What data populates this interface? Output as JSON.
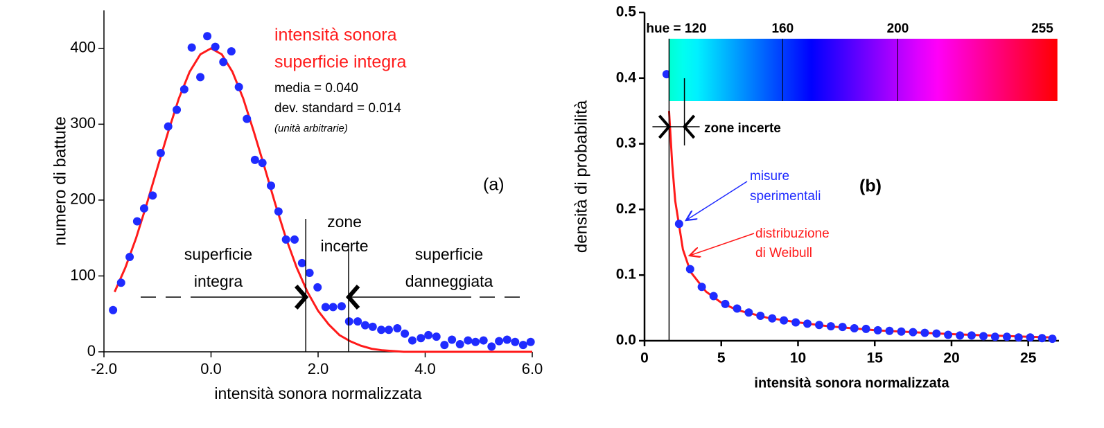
{
  "chart_data": [
    {
      "type": "scatter",
      "panel_label": "(a)",
      "x_label": "intensità sonora normalizzata",
      "y_label": "numero di battute",
      "xlim": [
        -2,
        6
      ],
      "ylim": [
        0,
        450
      ],
      "xticks": [
        {
          "value": -2,
          "label": "-2.0"
        },
        {
          "value": 0,
          "label": "0.0"
        },
        {
          "value": 2,
          "label": "2.0"
        },
        {
          "value": 4,
          "label": "4.0"
        },
        {
          "value": 6,
          "label": "6.0"
        }
      ],
      "yticks": [
        0,
        100,
        200,
        300,
        400
      ],
      "points": {
        "color": "#1f2bff",
        "x": [
          -1.83,
          -1.68,
          -1.52,
          -1.38,
          -1.25,
          -1.09,
          -0.94,
          -0.8,
          -0.64,
          -0.5,
          -0.36,
          -0.2,
          -0.07,
          0.08,
          0.23,
          0.38,
          0.52,
          0.67,
          0.82,
          0.96,
          1.12,
          1.26,
          1.4,
          1.56,
          1.7,
          1.84,
          1.99,
          2.14,
          2.28,
          2.44,
          2.58,
          2.74,
          2.88,
          3.02,
          3.18,
          3.32,
          3.48,
          3.62,
          3.76,
          3.92,
          4.06,
          4.21,
          4.36,
          4.5,
          4.65,
          4.8,
          4.94,
          5.09,
          5.24,
          5.38,
          5.53,
          5.68,
          5.83,
          5.97
        ],
        "y": [
          55,
          91,
          125,
          172,
          189,
          206,
          262,
          297,
          319,
          346,
          401,
          362,
          416,
          402,
          382,
          396,
          349,
          307,
          253,
          249,
          219,
          185,
          148,
          148,
          117,
          104,
          85,
          59,
          59,
          60,
          40,
          40,
          35,
          33,
          29,
          29,
          31,
          24,
          15,
          18,
          22,
          20,
          9,
          16,
          10,
          15,
          13,
          15,
          7,
          14,
          16,
          13,
          9,
          13
        ]
      },
      "fit": {
        "color": "#ff1a1a",
        "x": [
          -1.8,
          -1.6,
          -1.4,
          -1.2,
          -1.0,
          -0.8,
          -0.6,
          -0.4,
          -0.2,
          0,
          0.2,
          0.4,
          0.6,
          0.8,
          1.0,
          1.2,
          1.4,
          1.6,
          1.8,
          2.0,
          2.2,
          2.4,
          2.6,
          2.8,
          3.0,
          3.2,
          3.4,
          3.6,
          3.8,
          4.0,
          5.0,
          6.0
        ],
        "y": [
          79,
          111,
          150,
          195,
          243,
          290,
          334,
          369,
          392,
          400,
          392,
          369,
          334,
          290,
          243,
          195,
          150,
          111,
          79,
          54,
          36,
          22,
          14,
          8,
          4,
          2,
          1,
          0,
          0,
          0,
          0,
          0
        ]
      },
      "thresholds": [
        1.77,
        2.57
      ],
      "legend_red": [
        "intensità sonora",
        "superficie integra"
      ],
      "stats": [
        "media = 0.040",
        "dev. standard = 0.014"
      ],
      "units_note": "(unità arbitrarie)",
      "regions": [
        [
          "superficie",
          "integra"
        ],
        [
          "zone",
          "incerte"
        ],
        [
          "superficie",
          "danneggiata"
        ]
      ]
    },
    {
      "type": "scatter",
      "panel_label": "(b)",
      "x_label": "intensità sonora normalizzata",
      "y_label": "densità di probabilità",
      "xlim": [
        0,
        27
      ],
      "ylim": [
        0,
        0.5
      ],
      "xticks": [
        0,
        5,
        10,
        15,
        20,
        25
      ],
      "yticks": [
        {
          "value": 0,
          "label": "0.0"
        },
        0.1,
        0.2,
        0.3,
        0.4,
        0.5
      ],
      "points": {
        "color": "#1f2bff",
        "x": [
          1.44,
          2.25,
          2.97,
          3.73,
          4.5,
          5.26,
          6.03,
          6.79,
          7.55,
          8.32,
          9.08,
          9.85,
          10.61,
          11.38,
          12.14,
          12.9,
          13.67,
          14.43,
          15.2,
          15.96,
          16.73,
          17.49,
          18.26,
          19.02,
          19.78,
          20.55,
          21.31,
          22.08,
          22.84,
          23.61,
          24.37,
          25.13,
          25.9,
          26.57
        ],
        "y": [
          0.406,
          0.178,
          0.109,
          0.082,
          0.068,
          0.056,
          0.049,
          0.043,
          0.038,
          0.034,
          0.031,
          0.028,
          0.026,
          0.024,
          0.022,
          0.021,
          0.019,
          0.018,
          0.016,
          0.015,
          0.014,
          0.013,
          0.012,
          0.011,
          0.009,
          0.008,
          0.008,
          0.007,
          0.006,
          0.006,
          0.005,
          0.005,
          0.004,
          0.003
        ]
      },
      "fit": {
        "color": "#ff1a1a",
        "x": [
          1.6,
          1.8,
          2.0,
          2.5,
          3,
          4,
          5,
          6,
          8,
          10,
          12,
          15,
          20,
          25,
          26.6
        ],
        "y": [
          0.35,
          0.27,
          0.213,
          0.139,
          0.105,
          0.075,
          0.058,
          0.047,
          0.035,
          0.028,
          0.022,
          0.016,
          0.01,
          0.006,
          0.005
        ]
      },
      "thresholds": [
        1.6,
        2.6
      ],
      "hue_ticks": [
        {
          "value": 120,
          "label": "hue = 120"
        },
        160,
        200,
        255
      ],
      "hue_ticks_x": [
        1.6,
        9.0,
        16.5,
        26.9
      ],
      "colorbar_y": [
        0.365,
        0.46
      ],
      "uncertain_label": "zone incerte",
      "points_label": [
        "misure",
        "sperimentali"
      ],
      "fit_label": [
        "distribuzione",
        "di Weibull"
      ]
    }
  ]
}
